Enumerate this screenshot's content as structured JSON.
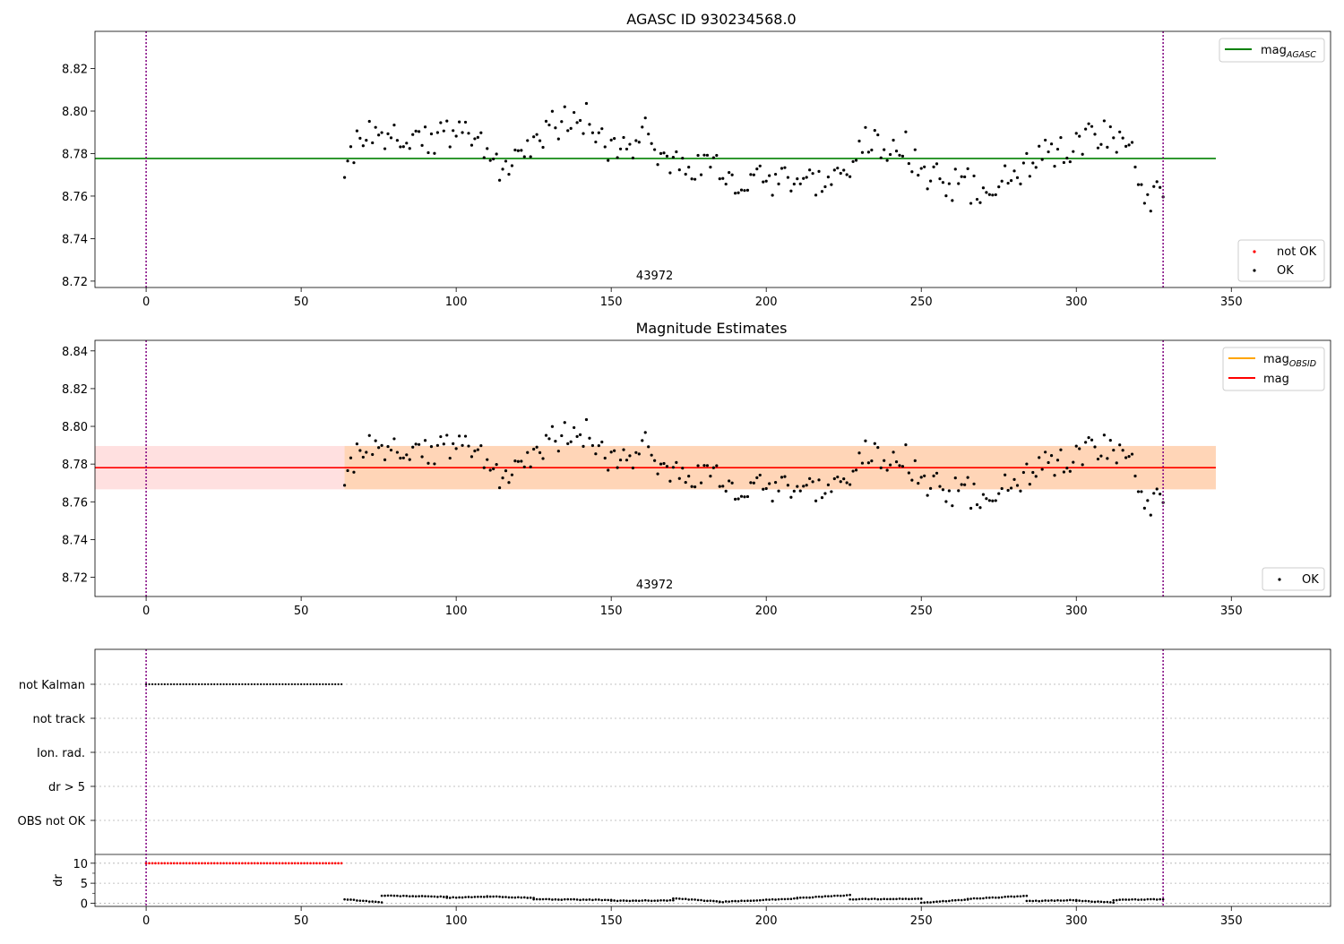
{
  "chart_data": [
    {
      "type": "scatter",
      "title": "AGASC ID 930234568.0",
      "xlim": [
        -16.5,
        382
      ],
      "ylim": [
        8.717,
        8.8375
      ],
      "xticks": [
        0,
        50,
        100,
        150,
        200,
        250,
        300,
        350
      ],
      "yticks": [
        8.72,
        8.74,
        8.76,
        8.78,
        8.8,
        8.82
      ],
      "xtick_labels": [
        "0",
        "50",
        "100",
        "150",
        "200",
        "250",
        "300",
        "350"
      ],
      "ytick_labels": [
        "8.72",
        "8.74",
        "8.76",
        "8.78",
        "8.80",
        "8.82"
      ],
      "obsid_label": "43972",
      "obsid_label_x": 164,
      "vlines": [
        0,
        328
      ],
      "hline": {
        "name": "mag_AGASC",
        "y": 8.7777,
        "x": [
          -16.5,
          345
        ],
        "color": "#008000"
      },
      "legend_upper": {
        "position": "upper right",
        "base": "mag",
        "sub": "AGASC"
      },
      "legend_lower": {
        "position": "lower right",
        "entries": [
          "not OK",
          "OK"
        ],
        "colors": [
          "#ff0000",
          "#000000"
        ]
      }
    },
    {
      "type": "scatter",
      "title": "Magnitude Estimates",
      "xlim": [
        -16.5,
        382
      ],
      "ylim": [
        8.7098,
        8.8456
      ],
      "xticks": [
        0,
        50,
        100,
        150,
        200,
        250,
        300,
        350
      ],
      "yticks": [
        8.72,
        8.74,
        8.76,
        8.78,
        8.8,
        8.82,
        8.84
      ],
      "xtick_labels": [
        "0",
        "50",
        "100",
        "150",
        "200",
        "250",
        "300",
        "350"
      ],
      "ytick_labels": [
        "8.72",
        "8.74",
        "8.76",
        "8.78",
        "8.80",
        "8.82",
        "8.84"
      ],
      "obsid_label": "43972",
      "obsid_label_x": 164,
      "vlines": [
        0,
        328
      ],
      "band_obsid": {
        "x": [
          64,
          345
        ],
        "y": [
          8.7666,
          8.7896
        ],
        "color": "#ffa500"
      },
      "band_mag": {
        "x": [
          -16.5,
          345
        ],
        "y": [
          8.7666,
          8.7896
        ],
        "color": "#ff0000"
      },
      "line_obsid": {
        "y": 8.7781,
        "x": [
          64,
          345
        ],
        "color": "#ffa500"
      },
      "line_mag": {
        "y": 8.7781,
        "x": [
          -16.5,
          345
        ],
        "color": "#ff0000"
      },
      "legend_upper": {
        "position": "upper right",
        "entries": [
          {
            "base": "mag",
            "sub": "OBSID",
            "color": "#ffa500"
          },
          {
            "base": "mag",
            "sub": "",
            "color": "#ff0000"
          }
        ]
      },
      "legend_lower": {
        "position": "lower right",
        "entries": [
          "OK"
        ]
      }
    },
    {
      "type": "scatter",
      "xlim": [
        -16.5,
        382
      ],
      "xticks": [
        0,
        50,
        100,
        150,
        200,
        250,
        300,
        350
      ],
      "xtick_labels": [
        "0",
        "50",
        "100",
        "150",
        "200",
        "250",
        "300",
        "350"
      ],
      "flag_rows": [
        "not Kalman",
        "not track",
        "Ion. rad.",
        "dr > 5",
        "OBS not OK"
      ],
      "flags": {
        "not Kalman": {
          "x": [
            0,
            63
          ]
        }
      },
      "vlines": [
        0,
        328
      ],
      "dr": {
        "ylabel": "dr",
        "ylim": [
          -0.8,
          12.2
        ],
        "yticks": [
          0,
          5,
          10
        ],
        "ytick_labels": [
          "0",
          "5",
          "10"
        ],
        "minor_yticks": [
          2.5,
          7.5
        ],
        "not_ok": {
          "x": [
            0,
            63
          ],
          "y": 10
        },
        "ok": {
          "x": [
            64,
            328
          ],
          "segments": [
            {
              "x": [
                64,
                76
              ],
              "y": [
                1.0,
                0.2
              ]
            },
            {
              "x": [
                76,
                97
              ],
              "y": [
                1.9,
                1.6
              ]
            },
            {
              "x": [
                97,
                110
              ],
              "y": [
                1.4,
                1.6
              ]
            },
            {
              "x": [
                110,
                125
              ],
              "y": [
                1.7,
                1.3
              ]
            },
            {
              "x": [
                125,
                150
              ],
              "y": [
                1.0,
                0.8
              ]
            },
            {
              "x": [
                150,
                170
              ],
              "y": [
                0.6,
                0.7
              ]
            },
            {
              "x": [
                170,
                185
              ],
              "y": [
                1.2,
                0.4
              ]
            },
            {
              "x": [
                185,
                210
              ],
              "y": [
                0.3,
                1.2
              ]
            },
            {
              "x": [
                210,
                227
              ],
              "y": [
                1.3,
                2.0
              ]
            },
            {
              "x": [
                227,
                250
              ],
              "y": [
                1.0,
                1.1
              ]
            },
            {
              "x": [
                250,
                265
              ],
              "y": [
                0.1,
                0.9
              ]
            },
            {
              "x": [
                265,
                284
              ],
              "y": [
                1.1,
                1.8
              ]
            },
            {
              "x": [
                284,
                300
              ],
              "y": [
                0.5,
                0.8
              ]
            },
            {
              "x": [
                300,
                312
              ],
              "y": [
                0.6,
                0.2
              ]
            },
            {
              "x": [
                312,
                328
              ],
              "y": [
                0.8,
                1.0
              ]
            }
          ]
        }
      }
    }
  ]
}
